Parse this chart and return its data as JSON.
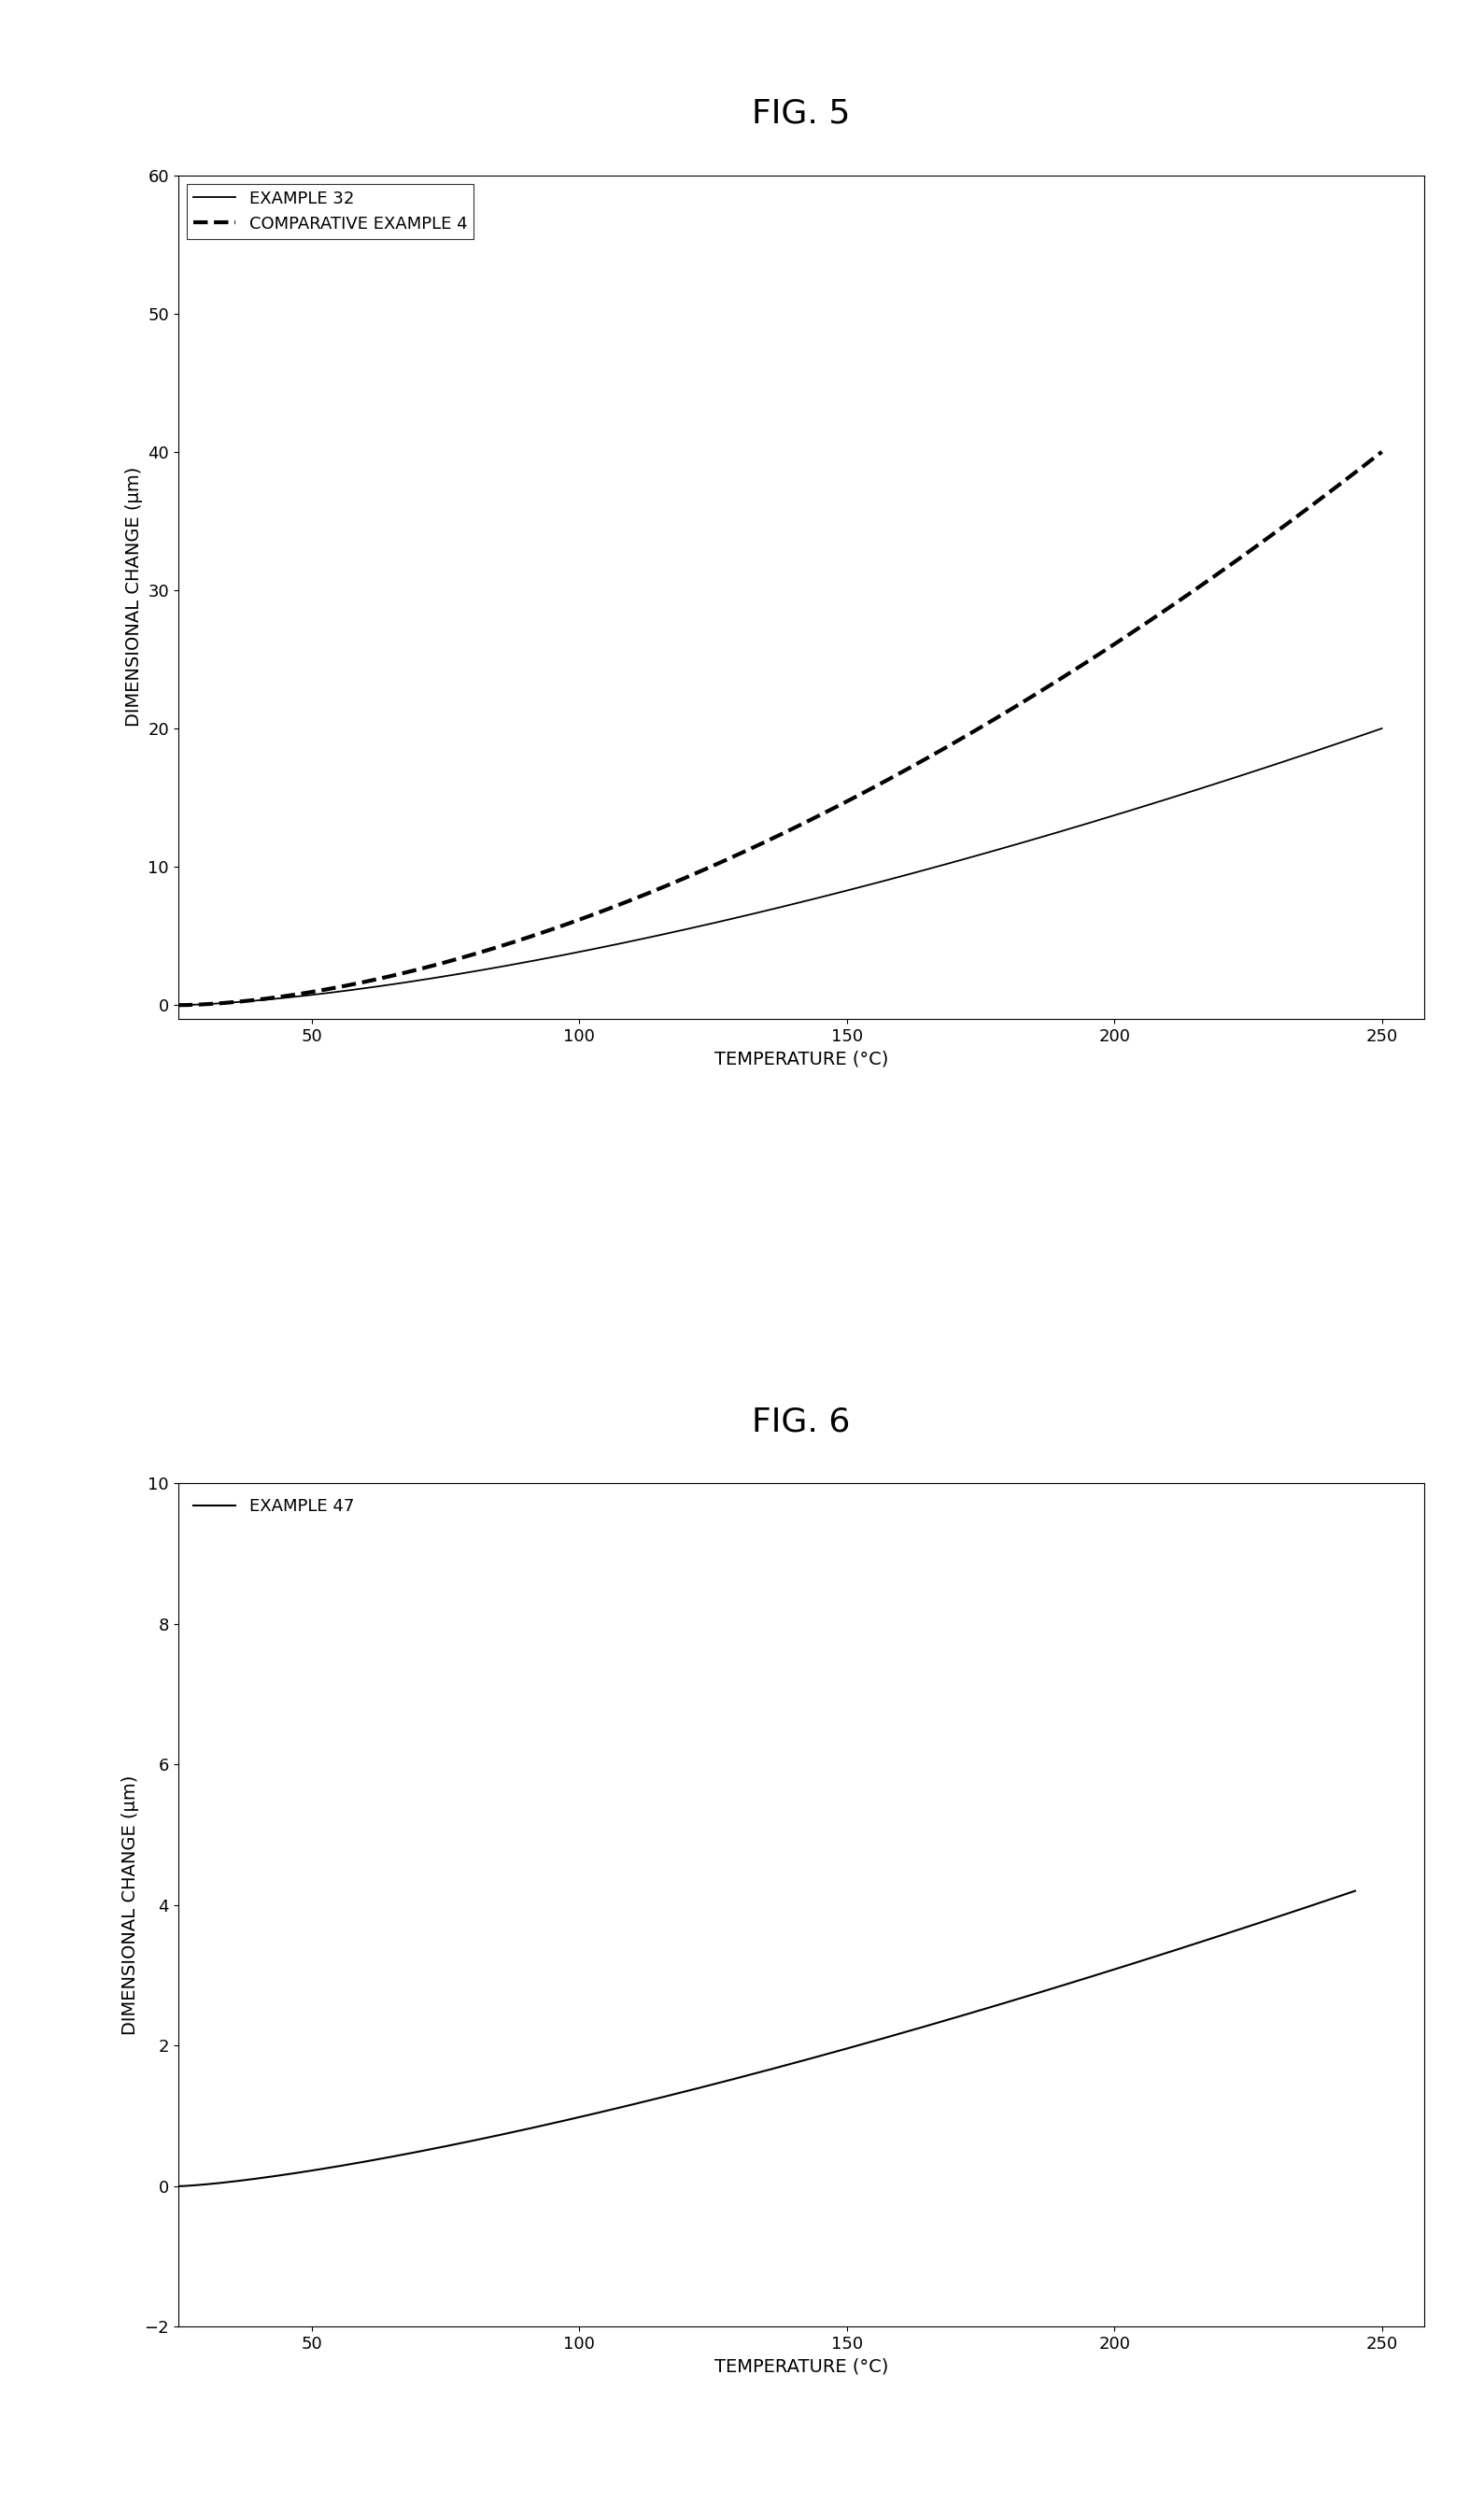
{
  "fig5": {
    "title": "FIG. 5",
    "xlabel": "TEMPERATURE (°C)",
    "ylabel": "DIMENSIONAL CHANGE (μm)",
    "xlim": [
      25,
      258
    ],
    "ylim": [
      -1,
      60
    ],
    "yticks": [
      0,
      10,
      20,
      30,
      40,
      50,
      60
    ],
    "xticks": [
      50,
      100,
      150,
      200,
      250
    ],
    "example32_label": "EXAMPLE 32",
    "comp4_label": "COMPARATIVE EXAMPLE 4",
    "example32_color": "#000000",
    "comp4_color": "#000000",
    "example32_style": "-",
    "comp4_style": "--",
    "example32_lw": 1.3,
    "comp4_lw": 3.0
  },
  "fig6": {
    "title": "FIG. 6",
    "xlabel": "TEMPERATURE (°C)",
    "ylabel": "DIMENSIONAL CHANGE (μm)",
    "xlim": [
      25,
      258
    ],
    "ylim": [
      -2,
      10
    ],
    "yticks": [
      -2,
      0,
      2,
      4,
      6,
      8,
      10
    ],
    "xticks": [
      50,
      100,
      150,
      200,
      250
    ],
    "example47_label": "EXAMPLE 47",
    "example47_color": "#000000",
    "example47_style": "-",
    "example47_lw": 1.5
  },
  "background_color": "#ffffff",
  "label_fontsize": 14,
  "tick_fontsize": 13,
  "legend_fontsize": 13,
  "fig_title_fontsize": 26
}
